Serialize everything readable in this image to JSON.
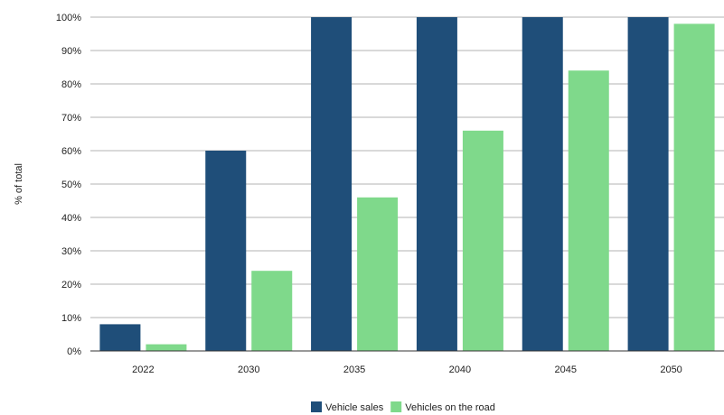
{
  "chart_data": {
    "type": "bar",
    "title": "",
    "xlabel": "",
    "ylabel": "% of total",
    "ylim": [
      0,
      100
    ],
    "y_ticks": [
      "0%",
      "10%",
      "20%",
      "30%",
      "40%",
      "50%",
      "60%",
      "70%",
      "80%",
      "90%",
      "100%"
    ],
    "y_tick_values": [
      0,
      10,
      20,
      30,
      40,
      50,
      60,
      70,
      80,
      90,
      100
    ],
    "grid": "horizontal",
    "legend_position": "bottom",
    "categories": [
      "2022",
      "2030",
      "2035",
      "2040",
      "2045",
      "2050"
    ],
    "series": [
      {
        "name": "Vehicle sales",
        "color": "#1f4e79",
        "values": [
          8,
          60,
          100,
          100,
          100,
          100
        ]
      },
      {
        "name": "Vehicles on the road",
        "color": "#7fd98b",
        "values": [
          2,
          24,
          46,
          66,
          84,
          98
        ]
      }
    ]
  }
}
